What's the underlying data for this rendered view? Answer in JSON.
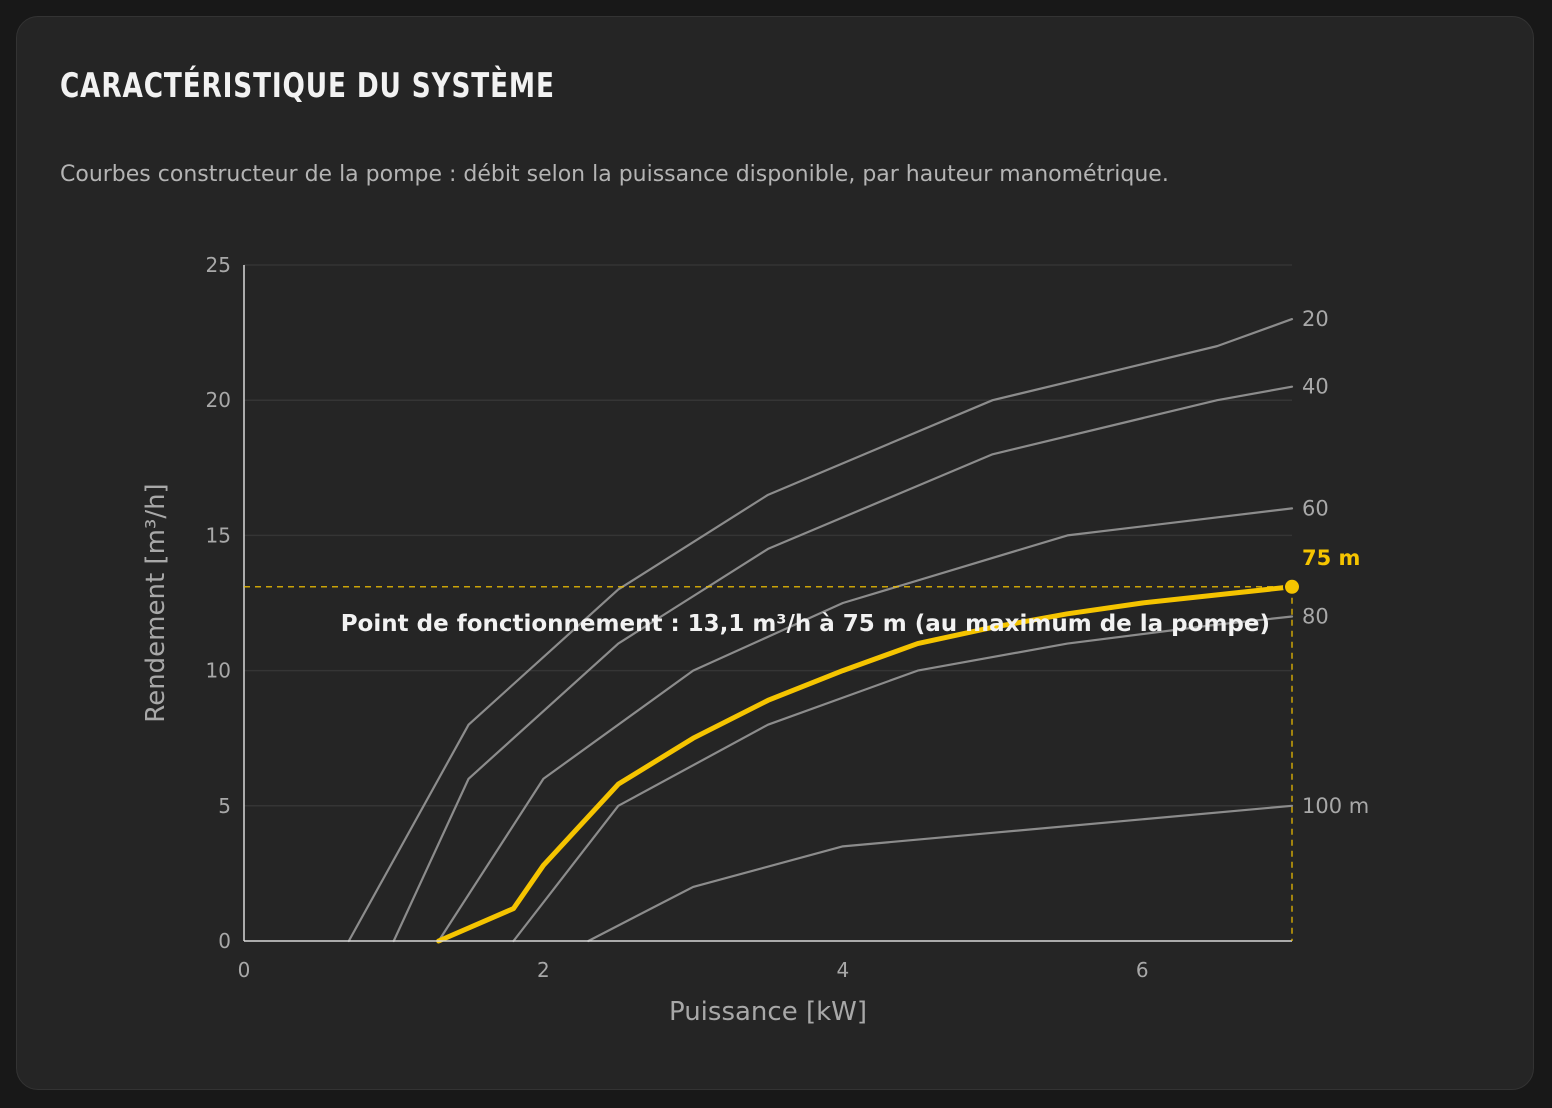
{
  "card": {
    "title": "Caractéristique du système",
    "subtitle": "Courbes constructeur de la pompe : débit selon la puissance disponible, par hauteur manométrique."
  },
  "chart_data": {
    "type": "line",
    "xlabel": "Puissance [kW]",
    "ylabel": "Rendement [m³/h]",
    "xlim": [
      0,
      7
    ],
    "ylim": [
      0,
      25
    ],
    "xticks": [
      0,
      2,
      4,
      6
    ],
    "yticks": [
      0,
      5,
      10,
      15,
      20,
      25
    ],
    "grid": "horizontal",
    "colors": {
      "series": "#8c8c8c",
      "highlight": "#f5c400",
      "grid": "#353535",
      "axis": "#d8d8d8"
    },
    "series": [
      {
        "name": "20",
        "x": [
          0.7,
          1.5,
          2.5,
          3.5,
          5.0,
          6.5,
          7.0
        ],
        "y": [
          0,
          8,
          13,
          16.5,
          20,
          22,
          23
        ]
      },
      {
        "name": "40",
        "x": [
          1.0,
          1.5,
          2.5,
          3.5,
          5.0,
          6.5,
          7.0
        ],
        "y": [
          0,
          6,
          11,
          14.5,
          18,
          20,
          20.5
        ]
      },
      {
        "name": "60",
        "x": [
          1.3,
          2.0,
          3.0,
          4.0,
          5.5,
          7.0
        ],
        "y": [
          0,
          6,
          10,
          12.5,
          15,
          16
        ]
      },
      {
        "name": "75 m",
        "highlight": true,
        "x": [
          1.3,
          1.8,
          2.0,
          2.5,
          3.0,
          3.5,
          4.0,
          4.5,
          5.0,
          5.5,
          6.0,
          6.5,
          7.0
        ],
        "y": [
          0,
          1.2,
          2.8,
          5.8,
          7.5,
          8.9,
          10.0,
          11.0,
          11.6,
          12.1,
          12.5,
          12.8,
          13.1
        ]
      },
      {
        "name": "80",
        "x": [
          1.8,
          2.5,
          3.5,
          4.5,
          5.5,
          6.5,
          7.0
        ],
        "y": [
          0,
          5,
          8,
          10,
          11,
          11.7,
          12
        ]
      },
      {
        "name": "100 m",
        "x": [
          2.3,
          3.0,
          4.0,
          5.0,
          6.0,
          7.0
        ],
        "y": [
          0,
          2,
          3.5,
          4,
          4.5,
          5
        ]
      }
    ],
    "operating_point": {
      "x": 7.0,
      "y": 13.1,
      "label": "Point de fonctionnement : 13,1 m³/h à 75 m (au maximum de la pompe)"
    }
  }
}
